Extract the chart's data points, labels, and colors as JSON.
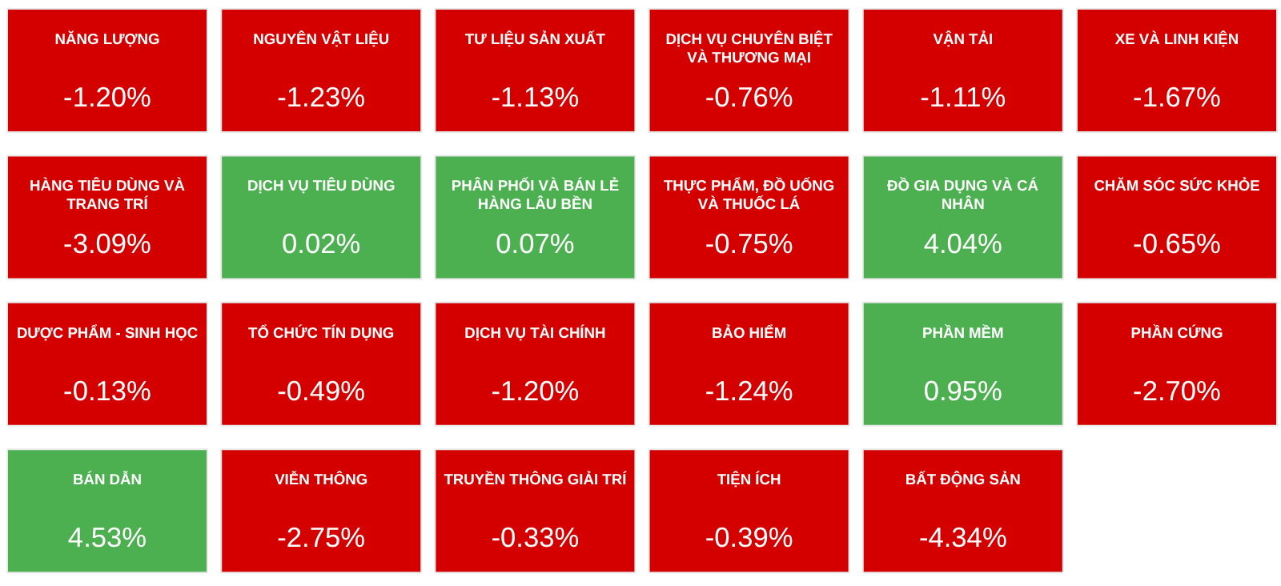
{
  "chart_data": {
    "type": "other",
    "categories": [
      "NĂNG LƯỢNG",
      "NGUYÊN VẬT LIỆU",
      "TƯ LIỆU SẢN XUẤT",
      "DỊCH VỤ CHUYÊN BIỆT\nVÀ THƯƠNG MẠI",
      "VẬN TẢI",
      "XE VÀ LINH KIỆN",
      "HÀNG TIÊU DÙNG VÀ\nTRANG TRÍ",
      "DỊCH VỤ TIÊU DÙNG",
      "PHÂN PHỐI VÀ BÁN LẺ\nHÀNG LÂU BỀN",
      "THỰC PHẨM, ĐỒ UỐNG\nVÀ THUỐC LÁ",
      "ĐỒ GIA DỤNG VÀ CÁ\nNHÂN",
      "CHĂM SÓC SỨC KHỎE",
      "DƯỢC PHẨM - SINH HỌC",
      "TỔ CHỨC TÍN DỤNG",
      "DỊCH VỤ TÀI CHÍNH",
      "BẢO HIỂM",
      "PHẦN MỀM",
      "PHẦN CỨNG",
      "BÁN DẪN",
      "VIỄN THÔNG",
      "TRUYỀN THÔNG GIẢI TRÍ",
      "TIỆN ÍCH",
      "BẤT ĐỘNG SẢN"
    ],
    "values": [
      -1.2,
      -1.23,
      -1.13,
      -0.76,
      -1.11,
      -1.67,
      -3.09,
      0.02,
      0.07,
      -0.75,
      4.04,
      -0.65,
      -0.13,
      -0.49,
      -1.2,
      -1.24,
      0.95,
      -2.7,
      4.53,
      -2.75,
      -0.33,
      -0.39,
      -4.34
    ],
    "value_labels": [
      "-1.20%",
      "-1.23%",
      "-1.13%",
      "-0.76%",
      "-1.11%",
      "-1.67%",
      "-3.09%",
      "0.02%",
      "0.07%",
      "-0.75%",
      "4.04%",
      "-0.65%",
      "-0.13%",
      "-0.49%",
      "-1.20%",
      "-1.24%",
      "0.95%",
      "-2.70%",
      "4.53%",
      "-2.75%",
      "-0.33%",
      "-0.39%",
      "-4.34%"
    ],
    "colors": [
      "#d40000",
      "#d40000",
      "#d40000",
      "#d40000",
      "#d40000",
      "#d40000",
      "#d40000",
      "#4caf50",
      "#4caf50",
      "#d40000",
      "#4caf50",
      "#d40000",
      "#d40000",
      "#d40000",
      "#d40000",
      "#d40000",
      "#4caf50",
      "#d40000",
      "#4caf50",
      "#d40000",
      "#d40000",
      "#d40000",
      "#d40000"
    ]
  }
}
